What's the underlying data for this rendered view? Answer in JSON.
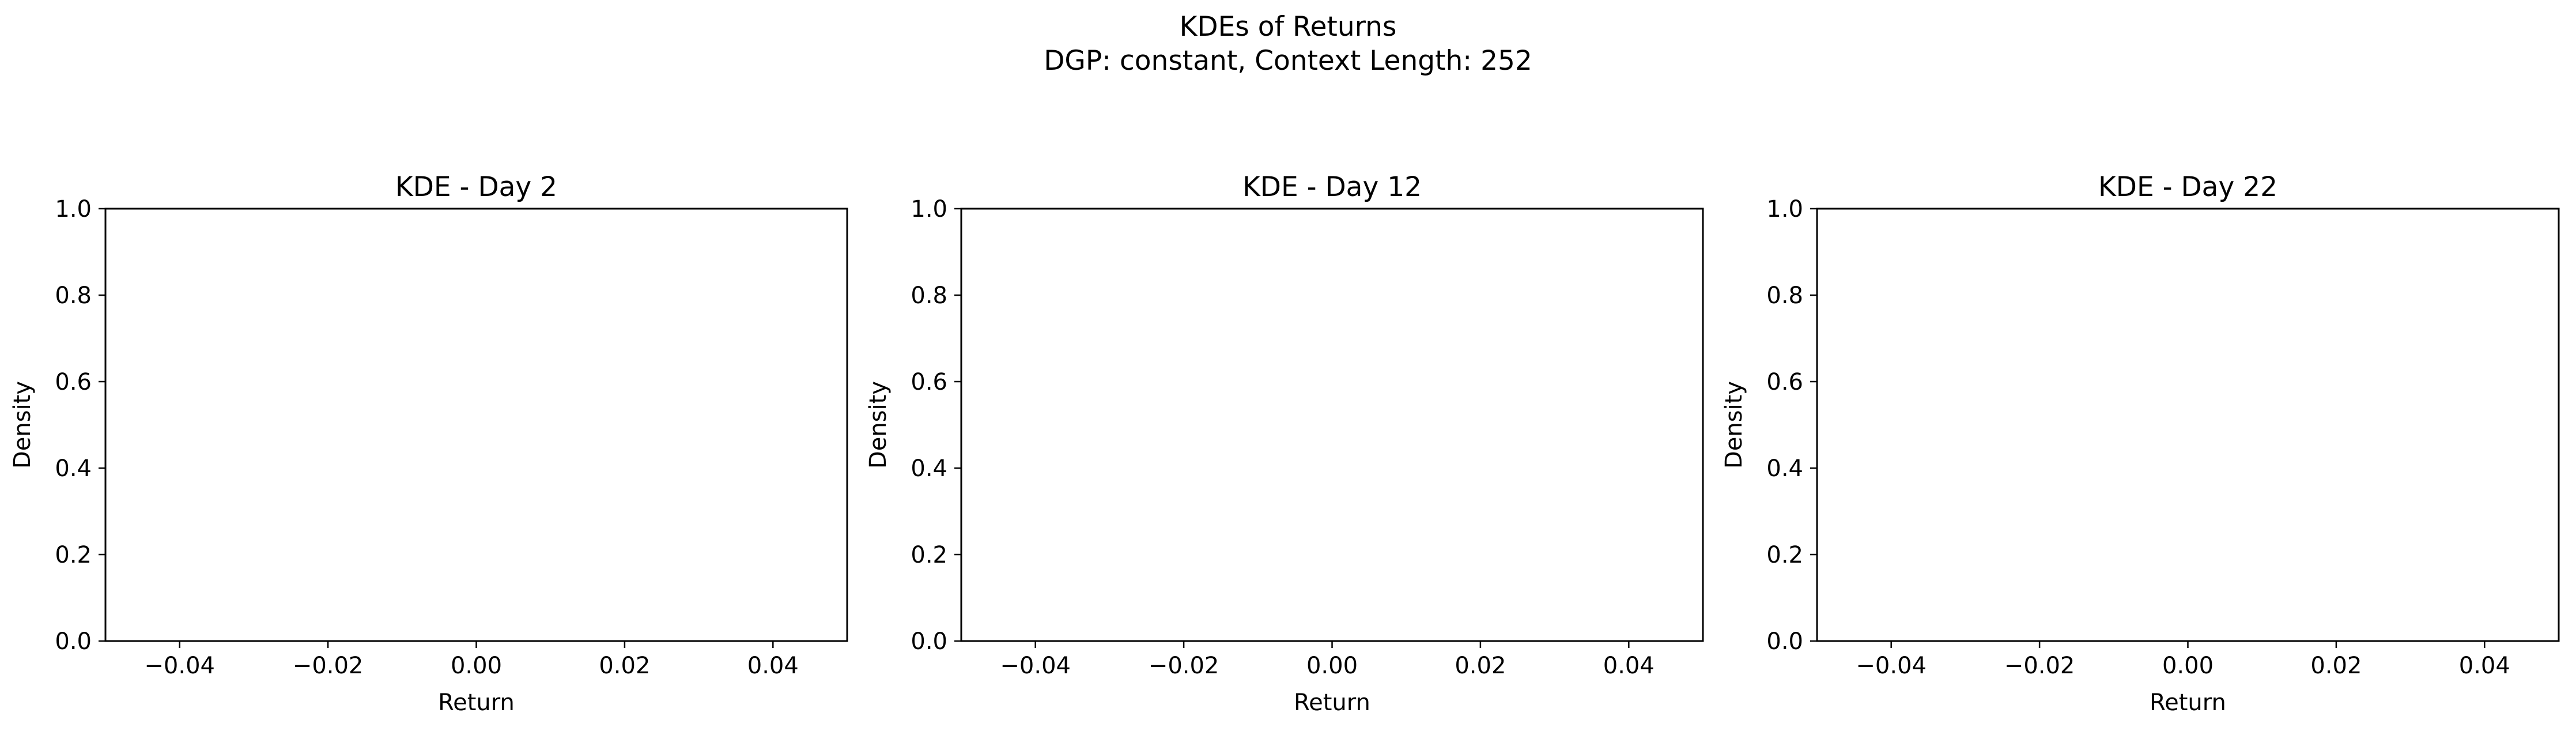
{
  "figure": {
    "title_line1": "KDEs of Returns",
    "title_line2": "DGP: constant, Context Length: 252"
  },
  "chart_data": [
    {
      "type": "line",
      "title": "KDE - Day 2",
      "xlabel": "Return",
      "ylabel": "Density",
      "xlim": [
        -0.05,
        0.05
      ],
      "ylim": [
        0,
        1
      ],
      "xticks": [
        -0.04,
        -0.02,
        0.0,
        0.02,
        0.04
      ],
      "xtick_labels": [
        "−0.04",
        "−0.02",
        "0.00",
        "0.02",
        "0.04"
      ],
      "yticks": [
        0.0,
        0.2,
        0.4,
        0.6,
        0.8,
        1.0
      ],
      "ytick_labels": [
        "0.0",
        "0.2",
        "0.4",
        "0.6",
        "0.8",
        "1.0"
      ],
      "series": [],
      "grid": false
    },
    {
      "type": "line",
      "title": "KDE - Day 12",
      "xlabel": "Return",
      "ylabel": "Density",
      "xlim": [
        -0.05,
        0.05
      ],
      "ylim": [
        0,
        1
      ],
      "xticks": [
        -0.04,
        -0.02,
        0.0,
        0.02,
        0.04
      ],
      "xtick_labels": [
        "−0.04",
        "−0.02",
        "0.00",
        "0.02",
        "0.04"
      ],
      "yticks": [
        0.0,
        0.2,
        0.4,
        0.6,
        0.8,
        1.0
      ],
      "ytick_labels": [
        "0.0",
        "0.2",
        "0.4",
        "0.6",
        "0.8",
        "1.0"
      ],
      "series": [],
      "grid": false
    },
    {
      "type": "line",
      "title": "KDE - Day 22",
      "xlabel": "Return",
      "ylabel": "Density",
      "xlim": [
        -0.05,
        0.05
      ],
      "ylim": [
        0,
        1
      ],
      "xticks": [
        -0.04,
        -0.02,
        0.0,
        0.02,
        0.04
      ],
      "xtick_labels": [
        "−0.04",
        "−0.02",
        "0.00",
        "0.02",
        "0.04"
      ],
      "yticks": [
        0.0,
        0.2,
        0.4,
        0.6,
        0.8,
        1.0
      ],
      "ytick_labels": [
        "0.0",
        "0.2",
        "0.4",
        "0.6",
        "0.8",
        "1.0"
      ],
      "series": [],
      "grid": false
    }
  ]
}
